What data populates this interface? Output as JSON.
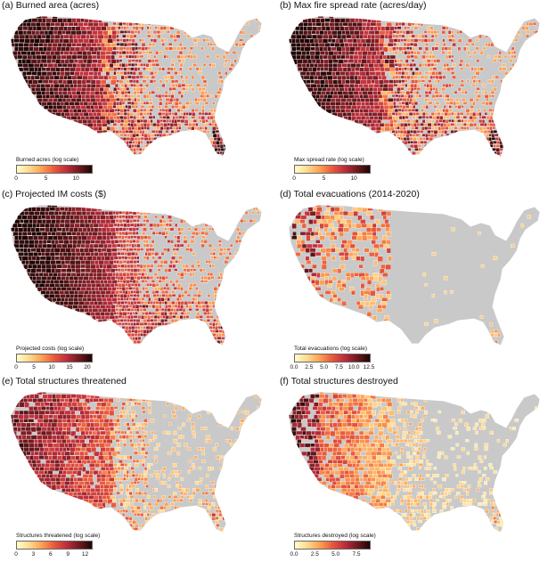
{
  "palette": {
    "no_data": "#c9c9c9",
    "county_line": "#ffffff",
    "ramp": [
      "#ffffcc",
      "#fed98e",
      "#fd9f52",
      "#e8593c",
      "#bd2d3c",
      "#6e1a1f",
      "#1f0504"
    ]
  },
  "panels": [
    {
      "title": "(a) Burned area (acres)",
      "legend_title": "Burned acres (log scale)",
      "ticks": [
        "0",
        "5",
        "10"
      ],
      "tick_values": [
        0,
        5,
        10
      ],
      "range": [
        0,
        12.5
      ],
      "pattern": "fire"
    },
    {
      "title": "(b) Max fire spread rate (acres/day)",
      "legend_title": "Max spread rate (log scale)",
      "ticks": [
        "0",
        "5",
        "10"
      ],
      "tick_values": [
        0,
        5,
        10
      ],
      "range": [
        0,
        12.5
      ],
      "pattern": "fire"
    },
    {
      "title": "(c) Projected IM costs ($)",
      "legend_title": "Projected costs (log scale)",
      "ticks": [
        "0",
        "5",
        "10",
        "15",
        "20"
      ],
      "tick_values": [
        0,
        5,
        10,
        15,
        20
      ],
      "range": [
        0,
        21
      ],
      "pattern": "costs"
    },
    {
      "title": "(d) Total evacuations (2014-2020)",
      "legend_title": "Total evacuations (log scale)",
      "ticks": [
        "0.0",
        "2.5",
        "5.0",
        "7.5",
        "10.0",
        "12.5"
      ],
      "tick_values": [
        0,
        2.5,
        5,
        7.5,
        10,
        12.5
      ],
      "range": [
        0,
        12.5
      ],
      "pattern": "evac"
    },
    {
      "title": "(e) Total structures threatened",
      "legend_title": "Structures threatened (log scale)",
      "ticks": [
        "0",
        "3",
        "6",
        "9",
        "12"
      ],
      "tick_values": [
        0,
        3,
        6,
        9,
        12
      ],
      "range": [
        0,
        13
      ],
      "pattern": "threat"
    },
    {
      "title": "(f) Total structures destroyed",
      "legend_title": "Structures destroyed (log scale)",
      "ticks": [
        "0.0",
        "2.5",
        "5.0",
        "7.5"
      ],
      "tick_values": [
        0,
        2.5,
        5,
        7.5
      ],
      "range": [
        0,
        9
      ],
      "pattern": "destroy"
    }
  ]
}
